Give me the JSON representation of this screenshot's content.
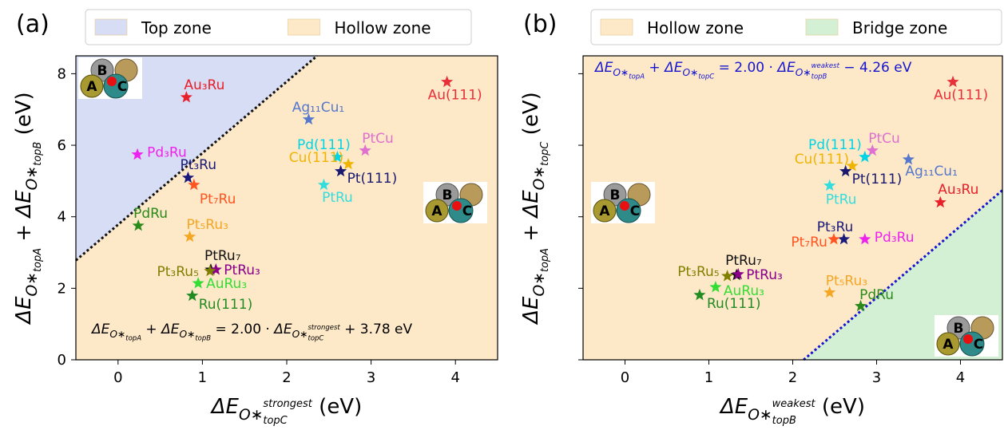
{
  "chart_data": [
    {
      "type": "scatter",
      "panel_label": "(a)",
      "zones": [
        {
          "name": "Top zone",
          "color": "#d7ddf5",
          "side": "above"
        },
        {
          "name": "Hollow zone",
          "color": "#fde8c8",
          "side": "below"
        }
      ],
      "boundary": {
        "slope": 2.0,
        "intercept": 3.78,
        "color": "#111111"
      },
      "annotation": [
        {
          "base": "ΔE",
          "sub": "O∗",
          "subsub": "topA"
        },
        " + ",
        {
          "base": "ΔE",
          "sub": "O∗",
          "subsub": "topB"
        },
        " = 2.00 · ",
        {
          "base": "ΔE",
          "sub": "O∗",
          "subsub": "topC",
          "subsup": "strongest"
        },
        " + 3.78 eV"
      ],
      "annotation_color": "#000000",
      "xlabel": [
        {
          "base": "ΔE",
          "sub": "O∗",
          "subsub": "topC",
          "subsup": "strongest"
        },
        " (eV)"
      ],
      "ylabel": [
        {
          "base": "ΔE",
          "sub": "O∗",
          "subsub": "topA"
        },
        " + ",
        {
          "base": "ΔE",
          "sub": "O∗",
          "subsub": "topB"
        },
        " (eV)"
      ],
      "xlim": [
        -0.5,
        4.5
      ],
      "ylim": [
        0,
        8.5
      ],
      "xticks": [
        0,
        1,
        2,
        3,
        4
      ],
      "yticks": [
        0,
        2,
        4,
        6,
        8
      ],
      "show_ytick_labels": true,
      "site_labels": [
        "A",
        "B",
        "C"
      ],
      "labels": [
        "Au₃Ru",
        "Au(111)",
        "Ag₁₁Cu₁",
        "Pd₃Ru",
        "Pt₃Ru",
        "Pt₇Ru",
        "PdRu",
        "Pt₅Ru₃",
        "PtRu₇",
        "PtRu₃",
        "Pt₃Ru₅",
        "AuRu₃",
        "Ru(111)",
        "Pd(111)",
        "PtCu",
        "Cu(111)",
        "Pt(111)",
        "PtRu"
      ],
      "x": [
        0.81,
        3.9,
        2.26,
        0.23,
        0.83,
        0.9,
        0.24,
        0.85,
        1.1,
        1.16,
        1.09,
        0.95,
        0.88,
        2.6,
        2.93,
        2.73,
        2.64,
        2.44
      ],
      "y": [
        7.34,
        7.77,
        6.72,
        5.74,
        5.09,
        4.89,
        3.75,
        3.44,
        2.52,
        2.52,
        2.48,
        2.14,
        1.79,
        5.67,
        5.85,
        5.47,
        5.27,
        4.89
      ],
      "colors": [
        "#e8202a",
        "#e8303a",
        "#5577cc",
        "#ee22ee",
        "#1a1a7a",
        "#ff5522",
        "#2a8a1a",
        "#f5a623",
        "#111111",
        "#8b008b",
        "#808000",
        "#33dd33",
        "#228b22",
        "#00d5e5",
        "#e070d0",
        "#f0b400",
        "#191970",
        "#33dddd"
      ]
    },
    {
      "type": "scatter",
      "panel_label": "(b)",
      "zones": [
        {
          "name": "Hollow zone",
          "color": "#fde8c8",
          "side": "above"
        },
        {
          "name": "Bridge zone",
          "color": "#d3f0d4",
          "side": "below"
        }
      ],
      "boundary": {
        "slope": 2.0,
        "intercept": -4.26,
        "color": "#1515d0"
      },
      "annotation": [
        {
          "base": "ΔE",
          "sub": "O∗",
          "subsub": "topA"
        },
        " + ",
        {
          "base": "ΔE",
          "sub": "O∗",
          "subsub": "topC"
        },
        " = 2.00 · ",
        {
          "base": "ΔE",
          "sub": "O∗",
          "subsub": "topB",
          "subsup": "weakest"
        },
        " − 4.26 eV"
      ],
      "annotation_color": "#1515d0",
      "xlabel": [
        {
          "base": "ΔE",
          "sub": "O∗",
          "subsub": "topB",
          "subsup": "weakest"
        },
        " (eV)"
      ],
      "ylabel": [
        {
          "base": "ΔE",
          "sub": "O∗",
          "subsub": "topA"
        },
        " + ",
        {
          "base": "ΔE",
          "sub": "O∗",
          "subsub": "topC"
        },
        " (eV)"
      ],
      "xlim": [
        -0.5,
        4.5
      ],
      "ylim": [
        0,
        8.5
      ],
      "xticks": [
        0,
        1,
        2,
        3,
        4
      ],
      "yticks": [
        0,
        2,
        4,
        6,
        8
      ],
      "show_ytick_labels": false,
      "site_labels": [
        "A",
        "B",
        "C"
      ],
      "labels": [
        "Au₃Ru",
        "Au(111)",
        "Ag₁₁Cu₁",
        "Pd₃Ru",
        "Pt₃Ru",
        "Pt₇Ru",
        "PdRu",
        "Pt₅Ru₃",
        "PtRu₇",
        "PtRu₃",
        "Pt₃Ru₅",
        "AuRu₃",
        "Ru(111)",
        "Pd(111)",
        "PtCu",
        "Cu(111)",
        "Pt(111)",
        "PtRu"
      ],
      "x": [
        3.76,
        3.91,
        3.38,
        2.86,
        2.61,
        2.49,
        2.81,
        2.44,
        1.33,
        1.35,
        1.22,
        1.08,
        0.89,
        2.86,
        2.95,
        2.71,
        2.63,
        2.44
      ],
      "y": [
        4.4,
        7.77,
        5.6,
        3.37,
        3.37,
        3.37,
        1.5,
        1.88,
        2.37,
        2.39,
        2.34,
        2.03,
        1.81,
        5.67,
        5.85,
        5.42,
        5.27,
        4.87
      ],
      "colors": [
        "#e8202a",
        "#e8303a",
        "#5577cc",
        "#ee22ee",
        "#1a1a7a",
        "#ff5522",
        "#2a8a1a",
        "#f5a623",
        "#111111",
        "#8b008b",
        "#808000",
        "#33dd33",
        "#228b22",
        "#00d5e5",
        "#e070d0",
        "#f0b400",
        "#191970",
        "#33dddd"
      ]
    }
  ]
}
